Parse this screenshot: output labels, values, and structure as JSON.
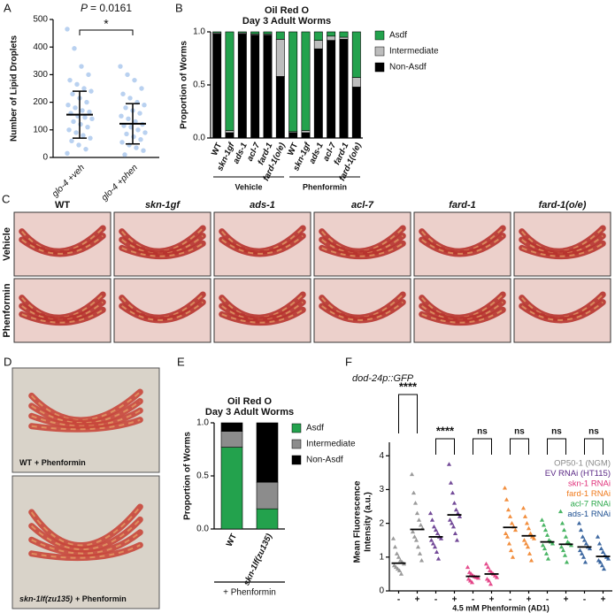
{
  "chart_data": [
    {
      "panel": "A",
      "type": "dotplot",
      "p_symbol": "P",
      "p_text": "= 0.0161",
      "significance": "*",
      "ylabel": "Number of Lipid Droplets",
      "ylim": [
        0,
        500
      ],
      "yticks": [
        0,
        100,
        200,
        300,
        400,
        500
      ],
      "categories": [
        "glo-4 +veh",
        "glo-4 +phen"
      ],
      "series": [
        {
          "color": "#a8c6ec",
          "mean": 155,
          "error": 85,
          "points": [
            465,
            395,
            330,
            300,
            280,
            265,
            250,
            240,
            230,
            215,
            200,
            190,
            180,
            170,
            165,
            160,
            150,
            145,
            140,
            130,
            120,
            110,
            100,
            90,
            80,
            70,
            60,
            45,
            30,
            15
          ]
        },
        {
          "color": "#a8c6ec",
          "mean": 122,
          "error": 73,
          "points": [
            330,
            300,
            280,
            250,
            230,
            215,
            200,
            190,
            180,
            170,
            160,
            150,
            140,
            130,
            120,
            115,
            110,
            100,
            90,
            85,
            75,
            65,
            55,
            45,
            35,
            25,
            10
          ]
        }
      ]
    },
    {
      "panel": "B",
      "type": "stacked_bar",
      "title": "Oil Red O",
      "subtitle": "Day 3 Adult Worms",
      "ylabel": "Proportion of Worms",
      "ylim": [
        0,
        1
      ],
      "yticks": [
        {
          "value": 0,
          "label": "0.0"
        },
        {
          "value": 0.5,
          "label": "0.5"
        },
        {
          "value": 1,
          "label": "1.0"
        }
      ],
      "stack_reversed": true,
      "categories": [
        "WT",
        "skn-1gf",
        "ads-1",
        "acl-7",
        "fard-1",
        "fard-1(o/e)",
        "WT",
        "skn-1gf",
        "ads-1",
        "acl-7",
        "fard-1",
        "fard-1(o/e)"
      ],
      "groups": [
        "Vehicle",
        "Phenformin"
      ],
      "series": [
        {
          "name": "Asdf",
          "color": "#23a24d",
          "values": [
            0.01,
            0.93,
            0.01,
            0.02,
            0.02,
            0.07,
            0.94,
            0.93,
            0.08,
            0.04,
            0.05,
            0.43
          ]
        },
        {
          "name": "Intermediate",
          "color": "#bdbdbd",
          "values": [
            0.01,
            0.02,
            0.01,
            0.01,
            0.01,
            0.35,
            0.01,
            0.02,
            0.08,
            0.04,
            0.02,
            0.09
          ]
        },
        {
          "name": "Non-Asdf",
          "color": "#000000",
          "values": [
            0.98,
            0.05,
            0.98,
            0.97,
            0.97,
            0.58,
            0.05,
            0.05,
            0.84,
            0.92,
            0.93,
            0.48
          ]
        }
      ]
    },
    {
      "panel": "E",
      "type": "stacked_bar",
      "title": "Oil Red O",
      "subtitle": "Day 3 Adult Worms",
      "ylabel": "Proportion of Worms",
      "xlabel": "+ Phenformin",
      "ylim": [
        0,
        1
      ],
      "yticks": [
        {
          "value": 0,
          "label": "0.0"
        },
        {
          "value": 0.5,
          "label": "0.5"
        },
        {
          "value": 1,
          "label": "1.0"
        }
      ],
      "stack_reversed": false,
      "categories": [
        "WT",
        "skn-1lf(zu135)"
      ],
      "series": [
        {
          "name": "Asdf",
          "color": "#23a24d",
          "values": [
            0.77,
            0.19
          ]
        },
        {
          "name": "Intermediate",
          "color": "#8c8c8c",
          "values": [
            0.15,
            0.25
          ]
        },
        {
          "name": "Non-Asdf",
          "color": "#000000",
          "values": [
            0.08,
            0.56
          ]
        }
      ]
    },
    {
      "panel": "F",
      "type": "group_dotplot",
      "title": "dod-24p::GFP",
      "ylabel": [
        "Mean Fluorescence",
        "Intensity (a.u.)"
      ],
      "xlabel": "4.5 mM Phenformin (AD1)",
      "ylim": [
        0,
        4.4
      ],
      "yticks": [
        0,
        1,
        2,
        3,
        4
      ],
      "significance": [
        "****",
        "****",
        "ns",
        "ns",
        "ns",
        "ns"
      ],
      "groups": [
        {
          "name": "OP50-1 (NGM)",
          "color": "#8a8a8a",
          "categories": [
            "-",
            "+"
          ],
          "means": [
            0.82,
            1.82
          ],
          "points": [
            [
              1.55,
              1.3,
              1.1,
              1.0,
              0.9,
              0.85,
              0.8,
              0.75,
              0.7,
              0.65,
              0.6,
              0.5
            ],
            [
              3.45,
              2.9,
              2.6,
              2.3,
              2.1,
              1.95,
              1.85,
              1.75,
              1.6,
              1.5,
              1.3,
              1.1,
              0.9
            ]
          ]
        },
        {
          "name": "EV RNAi (HT115)",
          "color": "#5b2a86",
          "categories": [
            "-",
            "+"
          ],
          "means": [
            1.6,
            2.25
          ],
          "points": [
            [
              2.3,
              2.1,
              1.9,
              1.8,
              1.7,
              1.6,
              1.55,
              1.5,
              1.4,
              1.3,
              1.15,
              0.95
            ],
            [
              3.75,
              3.2,
              2.9,
              2.6,
              2.4,
              2.3,
              2.2,
              2.1,
              2.0,
              1.9,
              1.7,
              1.5
            ]
          ]
        },
        {
          "name": "skn-1 RNAi",
          "color": "#e0307a",
          "categories": [
            "-",
            "+"
          ],
          "means": [
            0.43,
            0.5
          ],
          "points": [
            [
              0.7,
              0.55,
              0.5,
              0.45,
              0.42,
              0.4,
              0.38,
              0.35,
              0.3,
              0.25
            ],
            [
              0.8,
              0.7,
              0.6,
              0.55,
              0.5,
              0.45,
              0.4,
              0.35,
              0.3,
              0.2
            ]
          ]
        },
        {
          "name": "fard-1 RNAi",
          "color": "#f07b1d",
          "categories": [
            "-",
            "+"
          ],
          "means": [
            1.88,
            1.63
          ],
          "points": [
            [
              3.05,
              2.7,
              2.4,
              2.2,
              2.0,
              1.9,
              1.8,
              1.7,
              1.6,
              1.4,
              1.2,
              1.0
            ],
            [
              2.45,
              2.2,
              2.0,
              1.85,
              1.7,
              1.6,
              1.55,
              1.5,
              1.4,
              1.3,
              1.1,
              0.9
            ]
          ]
        },
        {
          "name": "acl-7 RNAi",
          "color": "#2aa84a",
          "categories": [
            "-",
            "+"
          ],
          "means": [
            1.45,
            1.38
          ],
          "points": [
            [
              2.1,
              1.95,
              1.8,
              1.65,
              1.5,
              1.45,
              1.4,
              1.35,
              1.25,
              1.1,
              0.95
            ],
            [
              2.35,
              2.0,
              1.8,
              1.6,
              1.45,
              1.4,
              1.35,
              1.3,
              1.2,
              1.05,
              0.85
            ]
          ]
        },
        {
          "name": "ads-1 RNAi",
          "color": "#1d4f91",
          "categories": [
            "-",
            "+"
          ],
          "means": [
            1.3,
            1.02
          ],
          "points": [
            [
              2.0,
              1.8,
              1.6,
              1.5,
              1.4,
              1.3,
              1.25,
              1.2,
              1.1,
              1.0,
              0.85
            ],
            [
              1.6,
              1.4,
              1.25,
              1.15,
              1.05,
              1.0,
              0.95,
              0.9,
              0.85,
              0.75,
              0.65
            ]
          ]
        }
      ]
    }
  ],
  "image_panels": [
    {
      "panel": "C",
      "columns": [
        "WT",
        "skn-1gf",
        "ads-1",
        "acl-7",
        "fard-1",
        "fard-1(o/e)"
      ],
      "rows": [
        "Vehicle",
        "Phenformin"
      ]
    },
    {
      "panel": "D",
      "captions": [
        {
          "genotype": "WT",
          "treatment": "+ Phenformin"
        },
        {
          "genotype": "skn-1lf(zu135)",
          "treatment": "+ Phenformin"
        }
      ]
    }
  ]
}
